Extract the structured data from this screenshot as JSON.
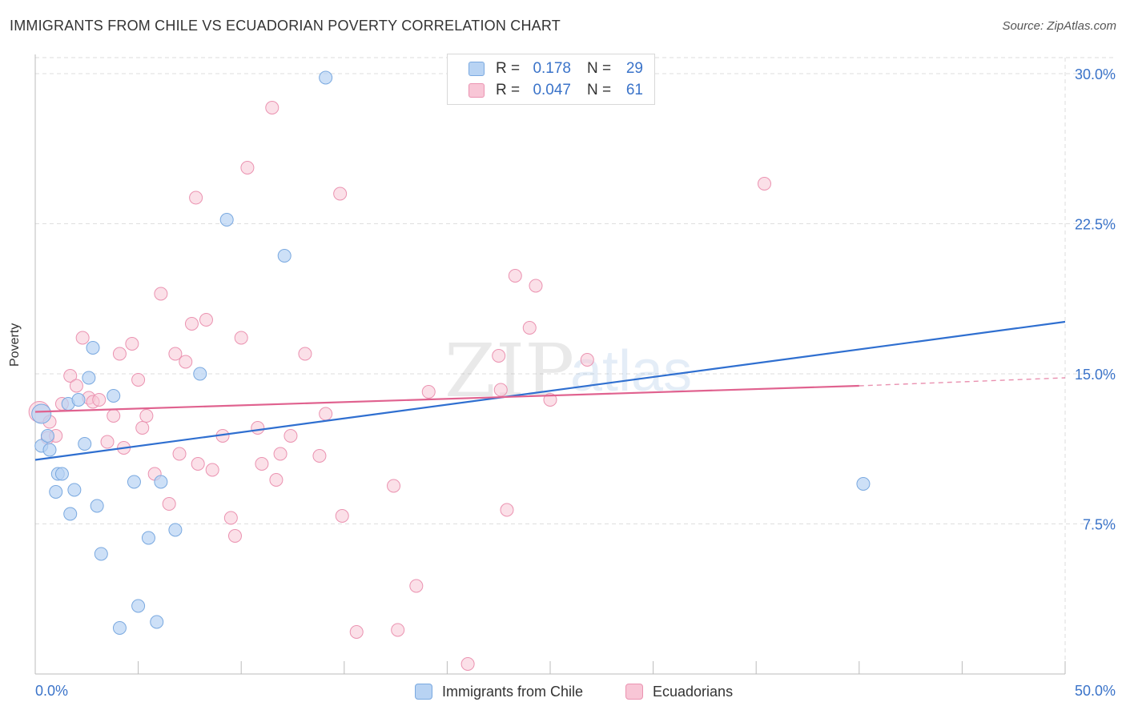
{
  "header": {
    "title": "IMMIGRANTS FROM CHILE VS ECUADORIAN POVERTY CORRELATION CHART",
    "source": "Source: ZipAtlas.com"
  },
  "watermark": {
    "text_zip": "ZIP",
    "text_atlas": "atlas"
  },
  "legend": {
    "r_label": "R =",
    "n_label": "N =",
    "rows": [
      {
        "r": "0.178",
        "n": "29"
      },
      {
        "r": "0.047",
        "n": "61"
      }
    ],
    "bottom": [
      "Immigrants from Chile",
      "Ecuadorians"
    ]
  },
  "colors": {
    "chile_fill": "#b8d3f3",
    "chile_stroke": "#7aa9e0",
    "chile_line": "#2f6fd0",
    "ecu_fill": "#f8c6d6",
    "ecu_stroke": "#eb93b1",
    "ecu_line": "#e0628f",
    "tick_text": "#3a73c9",
    "grid": "#dedede"
  },
  "chart_data": {
    "type": "scatter",
    "title": "IMMIGRANTS FROM CHILE VS ECUADORIAN POVERTY CORRELATION CHART",
    "xlabel": "",
    "ylabel": "Poverty",
    "xlim": [
      0,
      50
    ],
    "ylim": [
      0,
      30.8
    ],
    "x_tick_labels": [
      "0.0%",
      "50.0%"
    ],
    "y_ticks": [
      7.5,
      15.0,
      22.5,
      30.0
    ],
    "y_tick_labels": [
      "7.5%",
      "15.0%",
      "22.5%",
      "30.0%"
    ],
    "grid": true,
    "legend_position": "top-center",
    "series": [
      {
        "name": "Immigrants from Chile",
        "points": [
          [
            0.3,
            13.0
          ],
          [
            0.3,
            11.4
          ],
          [
            0.6,
            11.9
          ],
          [
            0.7,
            11.2
          ],
          [
            1.0,
            9.1
          ],
          [
            1.1,
            10.0
          ],
          [
            1.3,
            10.0
          ],
          [
            1.6,
            13.5
          ],
          [
            1.7,
            8.0
          ],
          [
            1.9,
            9.2
          ],
          [
            2.1,
            13.7
          ],
          [
            2.4,
            11.5
          ],
          [
            2.6,
            14.8
          ],
          [
            2.8,
            16.3
          ],
          [
            3.0,
            8.4
          ],
          [
            3.2,
            6.0
          ],
          [
            3.8,
            13.9
          ],
          [
            4.1,
            2.3
          ],
          [
            4.8,
            9.6
          ],
          [
            5.0,
            3.4
          ],
          [
            5.5,
            6.8
          ],
          [
            5.9,
            2.6
          ],
          [
            6.1,
            9.6
          ],
          [
            6.8,
            7.2
          ],
          [
            8.0,
            15.0
          ],
          [
            9.3,
            22.7
          ],
          [
            12.1,
            20.9
          ],
          [
            14.1,
            29.8
          ],
          [
            40.2,
            9.5
          ]
        ],
        "trend": {
          "x": [
            0,
            50
          ],
          "y": [
            10.7,
            17.6
          ]
        }
      },
      {
        "name": "Ecuadorians",
        "points": [
          [
            0.2,
            13.1
          ],
          [
            0.6,
            11.8
          ],
          [
            0.7,
            12.6
          ],
          [
            1.0,
            11.9
          ],
          [
            1.3,
            13.5
          ],
          [
            1.7,
            14.9
          ],
          [
            2.0,
            14.4
          ],
          [
            2.3,
            16.8
          ],
          [
            2.6,
            13.8
          ],
          [
            2.8,
            13.6
          ],
          [
            3.1,
            13.7
          ],
          [
            3.5,
            11.6
          ],
          [
            3.8,
            12.9
          ],
          [
            4.1,
            16.0
          ],
          [
            4.3,
            11.3
          ],
          [
            4.7,
            16.5
          ],
          [
            5.0,
            14.7
          ],
          [
            5.2,
            12.3
          ],
          [
            5.4,
            12.9
          ],
          [
            5.8,
            10.0
          ],
          [
            6.1,
            19.0
          ],
          [
            6.5,
            8.5
          ],
          [
            6.8,
            16.0
          ],
          [
            7.0,
            11.0
          ],
          [
            7.3,
            15.6
          ],
          [
            7.6,
            17.5
          ],
          [
            7.8,
            23.8
          ],
          [
            7.9,
            10.5
          ],
          [
            8.3,
            17.7
          ],
          [
            8.6,
            10.2
          ],
          [
            9.1,
            11.9
          ],
          [
            9.5,
            7.8
          ],
          [
            9.7,
            6.9
          ],
          [
            10.0,
            16.8
          ],
          [
            10.3,
            25.3
          ],
          [
            10.8,
            12.3
          ],
          [
            11.0,
            10.5
          ],
          [
            11.5,
            28.3
          ],
          [
            11.7,
            9.7
          ],
          [
            11.9,
            11.0
          ],
          [
            12.4,
            11.9
          ],
          [
            13.1,
            16.0
          ],
          [
            13.8,
            10.9
          ],
          [
            14.1,
            13.0
          ],
          [
            14.8,
            24.0
          ],
          [
            14.9,
            7.9
          ],
          [
            15.6,
            2.1
          ],
          [
            17.4,
            9.4
          ],
          [
            17.6,
            2.2
          ],
          [
            18.5,
            4.4
          ],
          [
            19.1,
            14.1
          ],
          [
            21.0,
            0.5
          ],
          [
            22.5,
            15.9
          ],
          [
            22.6,
            14.2
          ],
          [
            22.9,
            8.2
          ],
          [
            23.3,
            19.9
          ],
          [
            24.0,
            17.3
          ],
          [
            24.3,
            19.4
          ],
          [
            25.0,
            13.7
          ],
          [
            26.8,
            15.7
          ],
          [
            35.4,
            24.5
          ]
        ],
        "trend": {
          "x": [
            0,
            40,
            50
          ],
          "y": [
            13.1,
            14.4,
            14.8
          ],
          "solid_until_x": 40
        }
      }
    ]
  }
}
